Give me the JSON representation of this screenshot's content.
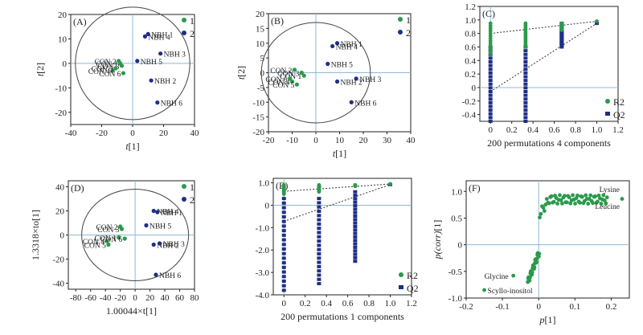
{
  "colors": {
    "green": "#2a9a4a",
    "blue": "#1f2f86",
    "axis": "#222222",
    "ref": "#8fb8d6",
    "circle": "#444444"
  },
  "chart_data": [
    {
      "id": "A",
      "type": "scatter",
      "panel_label": "(A)",
      "xlabel": "t[1]",
      "ylabel": "t[2]",
      "xlim": [
        -40,
        40
      ],
      "ylim": [
        -25,
        20
      ],
      "xticks": [
        -40,
        -20,
        0,
        20,
        40
      ],
      "yticks": [
        -20,
        -10,
        0,
        10,
        20
      ],
      "ellipse": {
        "cx": 0,
        "cy": 0,
        "rx": 37,
        "ry": 23
      },
      "legend": [
        {
          "label": "1",
          "color": "green"
        },
        {
          "label": "2",
          "color": "blue"
        }
      ],
      "series": [
        {
          "name": "1",
          "color": "green",
          "points": [
            {
              "label": "CON 1",
              "x": -8,
              "y": 0
            },
            {
              "label": "CON 2",
              "x": -9,
              "y": 1
            },
            {
              "label": "CON 3",
              "x": -7,
              "y": -1
            },
            {
              "label": "CON 4",
              "x": -13,
              "y": -3
            },
            {
              "label": "CON 5",
              "x": -11,
              "y": -2
            },
            {
              "label": "CON 6",
              "x": -6,
              "y": -4
            }
          ]
        },
        {
          "name": "2",
          "color": "blue",
          "points": [
            {
              "label": "NBH 1",
              "x": 10,
              "y": 12
            },
            {
              "label": "NBH 2",
              "x": 12,
              "y": -7
            },
            {
              "label": "NBH 3",
              "x": 18,
              "y": 4
            },
            {
              "label": "NBH 4",
              "x": 8,
              "y": 11
            },
            {
              "label": "NBH 5",
              "x": 3,
              "y": 1
            },
            {
              "label": "NBH 6",
              "x": 16,
              "y": -16
            }
          ]
        }
      ]
    },
    {
      "id": "B",
      "type": "scatter",
      "panel_label": "(B)",
      "xlabel": "t[1]",
      "ylabel": "t[2]",
      "xlim": [
        -20,
        40
      ],
      "ylim": [
        -20,
        20
      ],
      "xticks": [
        -20,
        -10,
        0,
        10,
        20,
        30,
        40
      ],
      "yticks": [
        -20,
        -15,
        -10,
        -5,
        0,
        5,
        10,
        15,
        20
      ],
      "ellipse": {
        "cx": 0,
        "cy": 0,
        "rx": 23,
        "ry": 17
      },
      "legend": [
        {
          "label": "1",
          "color": "green"
        },
        {
          "label": "2",
          "color": "blue"
        }
      ],
      "series": [
        {
          "name": "1",
          "color": "green",
          "points": [
            {
              "label": "CON 1",
              "x": -5,
              "y": -1
            },
            {
              "label": "CON 2",
              "x": -9,
              "y": 1
            },
            {
              "label": "CON 3",
              "x": -6,
              "y": 0
            },
            {
              "label": "CON 4",
              "x": -10,
              "y": -3
            },
            {
              "label": "CON 5",
              "x": -8,
              "y": -4
            },
            {
              "label": "CON 6",
              "x": -11,
              "y": -2
            }
          ]
        },
        {
          "name": "2",
          "color": "blue",
          "points": [
            {
              "label": "NBH 1",
              "x": 9,
              "y": 10
            },
            {
              "label": "NBH 2",
              "x": 9,
              "y": -3
            },
            {
              "label": "NBH 3",
              "x": 17,
              "y": -2
            },
            {
              "label": "NBH 4",
              "x": 7,
              "y": 9
            },
            {
              "label": "NBH 5",
              "x": 5,
              "y": 3
            },
            {
              "label": "NBH 6",
              "x": 15,
              "y": -10
            }
          ]
        }
      ]
    },
    {
      "id": "C",
      "type": "scatter",
      "panel_label": "(C)",
      "xlabel": "200 permutations 4 components",
      "ylabel": "",
      "xlim": [
        -0.1,
        1.2
      ],
      "ylim": [
        -0.5,
        1.2
      ],
      "xticks": [
        0,
        0.2,
        0.4,
        0.6,
        0.8,
        1.0,
        1.2
      ],
      "yticks": [
        -0.4,
        -0.2,
        0,
        0.2,
        0.4,
        0.6,
        0.8,
        1.0,
        1.2
      ],
      "legend": [
        {
          "label": "R2",
          "color": "green"
        },
        {
          "label": "Q2",
          "color": "blue"
        }
      ],
      "r2_intercept": 0.8,
      "r2_end": 0.98,
      "q2_intercept": -0.06,
      "q2_end": 0.95,
      "columns": [
        {
          "x": 0,
          "r2_min": 0.5,
          "r2_max": 0.95,
          "q2_min": -0.5,
          "q2_max": 0.6
        },
        {
          "x": 0.33,
          "r2_min": 0.6,
          "r2_max": 0.95,
          "q2_min": -0.5,
          "q2_max": 0.6
        },
        {
          "x": 0.67,
          "r2_min": 0.85,
          "r2_max": 0.95,
          "q2_min": 0.6,
          "q2_max": 0.95
        }
      ],
      "endpoint": {
        "x": 1.0,
        "r2": 0.98,
        "q2": 0.95
      }
    },
    {
      "id": "D",
      "type": "scatter",
      "panel_label": "(D)",
      "xlabel": "1.00044×t[1]",
      "ylabel": "1.3318×to[1]",
      "xlim": [
        -90,
        80
      ],
      "ylim": [
        -45,
        45
      ],
      "xticks": [
        -80,
        -60,
        -40,
        -20,
        0,
        20,
        40,
        60,
        80
      ],
      "yticks": [
        -40,
        -20,
        0,
        20,
        40
      ],
      "ellipse": {
        "cx": 0,
        "cy": 0,
        "rx": 72,
        "ry": 38
      },
      "legend": [
        {
          "label": "1",
          "color": "green"
        },
        {
          "label": "2",
          "color": "blue"
        }
      ],
      "series": [
        {
          "name": "1",
          "color": "green",
          "points": [
            {
              "label": "CON 1",
              "x": -22,
              "y": -2
            },
            {
              "label": "CON 2",
              "x": -20,
              "y": 7
            },
            {
              "label": "CON 3",
              "x": -18,
              "y": 5
            },
            {
              "label": "CON 4",
              "x": -38,
              "y": -5
            },
            {
              "label": "CON 5",
              "x": -36,
              "y": -8
            },
            {
              "label": "CON 6",
              "x": -14,
              "y": -3
            }
          ]
        },
        {
          "name": "2",
          "color": "blue",
          "points": [
            {
              "label": "NBH 1",
              "x": 30,
              "y": 19
            },
            {
              "label": "NBH 2",
              "x": 25,
              "y": -8
            },
            {
              "label": "NBH 3",
              "x": 33,
              "y": -7
            },
            {
              "label": "NBH 4",
              "x": 25,
              "y": 20
            },
            {
              "label": "NBH 5",
              "x": 15,
              "y": 8
            },
            {
              "label": "NBH 6",
              "x": 28,
              "y": -33
            }
          ]
        }
      ]
    },
    {
      "id": "E",
      "type": "scatter",
      "panel_label": "(E)",
      "xlabel": "200 permutations 1 components",
      "ylabel": "",
      "xlim": [
        -0.1,
        1.2
      ],
      "ylim": [
        -4.0,
        1.2
      ],
      "xticks": [
        0,
        0.2,
        0.4,
        0.6,
        0.8,
        1.0,
        1.2
      ],
      "yticks": [
        -4.0,
        -3.0,
        -2.0,
        -1.0,
        0,
        1.0
      ],
      "legend": [
        {
          "label": "R2",
          "color": "green"
        },
        {
          "label": "Q2",
          "color": "blue"
        }
      ],
      "r2_intercept": 0.62,
      "r2_end": 0.95,
      "q2_intercept": -0.72,
      "q2_end": 0.92,
      "columns": [
        {
          "x": 0,
          "r2_min": 0.5,
          "r2_max": 0.9,
          "q2_min": -3.8,
          "q2_max": 0.3
        },
        {
          "x": 0.33,
          "r2_min": 0.6,
          "r2_max": 0.9,
          "q2_min": -3.5,
          "q2_max": 0.3
        },
        {
          "x": 0.67,
          "r2_min": 0.85,
          "r2_max": 0.9,
          "q2_min": -2.5,
          "q2_max": 0.6
        }
      ],
      "endpoint": {
        "x": 1.0,
        "r2": 0.95,
        "q2": 0.92
      }
    },
    {
      "id": "F",
      "type": "scatter",
      "panel_label": "(F)",
      "xlabel": "p[1]",
      "ylabel": "p(corr)[1]",
      "xlim": [
        -0.2,
        0.25
      ],
      "ylim": [
        -1.0,
        1.2
      ],
      "xticks": [
        -0.2,
        -0.1,
        0,
        0.1,
        0.2
      ],
      "yticks": [
        -1.0,
        -0.5,
        0,
        0.5,
        1.0
      ],
      "annotations": [
        {
          "label": "Lysine",
          "x": 0.23,
          "y": 0.9
        },
        {
          "label": "Leucine",
          "x": 0.23,
          "y": 0.85
        },
        {
          "label": "Glycine",
          "x": -0.07,
          "y": -0.58
        },
        {
          "label": "Scyllo-inositol",
          "x": -0.15,
          "y": -0.85
        }
      ]
    }
  ]
}
